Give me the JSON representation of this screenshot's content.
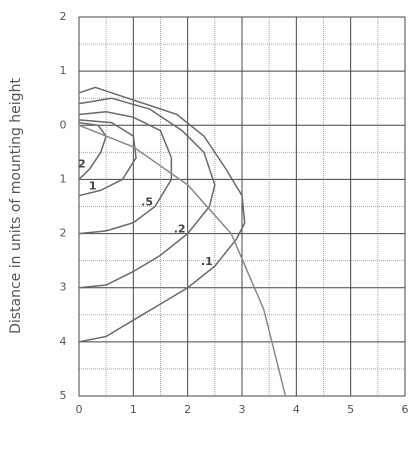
{
  "chart_data": {
    "type": "line",
    "y_label": "Distance in units of mounting height",
    "xlim": [
      0,
      6
    ],
    "xticks": [
      0,
      1,
      2,
      3,
      4,
      5,
      6
    ],
    "ylim": [
      -5,
      2
    ],
    "yticks": [
      2,
      1,
      0,
      {
        "value": -1,
        "label": "1"
      },
      {
        "value": -2,
        "label": "2"
      },
      {
        "value": -3,
        "label": "3"
      },
      {
        "value": -4,
        "label": "4"
      },
      {
        "value": -5,
        "label": "5"
      }
    ],
    "grid": true,
    "series": [
      {
        "name": ".1",
        "color": "#6a6a6a",
        "x": [
          0,
          0.5,
          1,
          1.5,
          2,
          2.5,
          2.9,
          3.05,
          3.0,
          2.7,
          2.3,
          1.8,
          1.2,
          0.6,
          0.3,
          0
        ],
        "values": [
          -4.0,
          -3.9,
          -3.6,
          -3.3,
          -3.0,
          -2.6,
          -2.1,
          -1.8,
          -1.3,
          -0.8,
          -0.2,
          0.2,
          0.4,
          0.6,
          0.7,
          0.6
        ]
      },
      {
        "name": ".2",
        "color": "#6a6a6a",
        "x": [
          0,
          0.5,
          1,
          1.5,
          2,
          2.4,
          2.5,
          2.3,
          1.9,
          1.3,
          0.6,
          0
        ],
        "values": [
          -3.0,
          -2.95,
          -2.7,
          -2.4,
          -2.0,
          -1.5,
          -1.1,
          -0.5,
          -0.1,
          0.3,
          0.5,
          0.4
        ]
      },
      {
        "name": ".5",
        "color": "#6a6a6a",
        "x": [
          0,
          0.5,
          1,
          1.4,
          1.7,
          1.7,
          1.5,
          1,
          0.5,
          0
        ],
        "values": [
          -2.0,
          -1.95,
          -1.8,
          -1.5,
          -1.0,
          -0.6,
          -0.1,
          0.15,
          0.25,
          0.2
        ]
      },
      {
        "name": "1",
        "color": "#6a6a6a",
        "x": [
          0,
          0.4,
          0.8,
          1.05,
          1.0,
          0.6,
          0
        ],
        "values": [
          -1.3,
          -1.2,
          -1.0,
          -0.6,
          -0.2,
          0.05,
          0.1
        ]
      },
      {
        "name": "2",
        "color": "#6a6a6a",
        "x": [
          0,
          0.2,
          0.4,
          0.5,
          0.35,
          0
        ],
        "values": [
          -1.0,
          -0.8,
          -0.5,
          -0.2,
          0,
          0.05
        ]
      },
      {
        "color": "#8a8a8a",
        "x": [
          0,
          1,
          2,
          2.8,
          3.4,
          3.8
        ],
        "values": [
          0,
          -0.4,
          -1.1,
          -2.0,
          -3.4,
          -5.0
        ]
      }
    ]
  }
}
